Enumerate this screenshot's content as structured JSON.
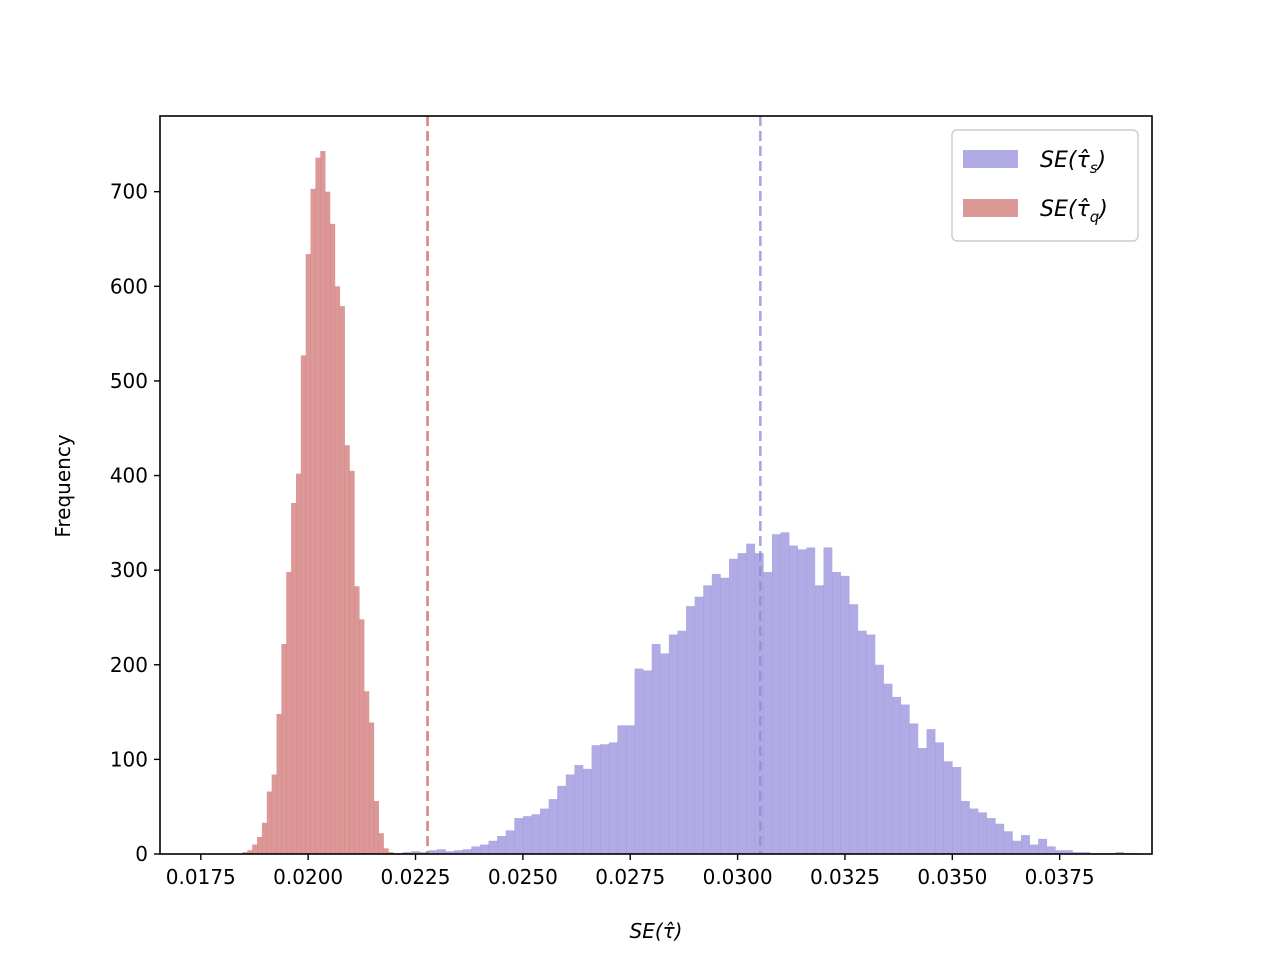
{
  "chart_data": {
    "type": "bar",
    "title": "",
    "xlabel": "SE(τ̂)",
    "ylabel": "Frequency",
    "xlim": [
      0.01655,
      0.03965
    ],
    "ylim": [
      0,
      780
    ],
    "xticks": [
      0.0175,
      0.02,
      0.0225,
      0.025,
      0.0275,
      0.03,
      0.0325,
      0.035,
      0.0375
    ],
    "xtick_labels": [
      "0.0175",
      "0.0200",
      "0.0225",
      "0.0250",
      "0.0275",
      "0.0300",
      "0.0325",
      "0.0350",
      "0.0375"
    ],
    "yticks": [
      0,
      100,
      200,
      300,
      400,
      500,
      600,
      700
    ],
    "ytick_labels": [
      "0",
      "100",
      "200",
      "300",
      "400",
      "500",
      "600",
      "700"
    ],
    "grid": false,
    "legend": {
      "placement": "top-right"
    },
    "series": [
      {
        "name": "SE(τ̂_s)",
        "legend_main": "SE(τ̂",
        "legend_sub": "s",
        "legend_close": ")",
        "color": "#8f88d8",
        "mean_line_color": "#8f88d8",
        "mean": 0.03053,
        "bin_start": 0.0212,
        "bin_width": 0.0002,
        "values": [
          1,
          1,
          0,
          1,
          1,
          2,
          3,
          2,
          4,
          5,
          3,
          4,
          5,
          8,
          10,
          14,
          19,
          25,
          38,
          40,
          42,
          48,
          58,
          72,
          84,
          94,
          90,
          115,
          116,
          118,
          136,
          136,
          196,
          194,
          222,
          212,
          232,
          236,
          262,
          272,
          284,
          296,
          292,
          312,
          318,
          328,
          318,
          298,
          338,
          340,
          326,
          322,
          324,
          284,
          324,
          298,
          294,
          264,
          236,
          232,
          200,
          180,
          166,
          158,
          138,
          112,
          132,
          118,
          98,
          92,
          56,
          48,
          44,
          38,
          32,
          24,
          14,
          20,
          10,
          16,
          8,
          4,
          4,
          2,
          2,
          1,
          1,
          1,
          2,
          1,
          1
        ]
      },
      {
        "name": "SE(τ̂_q)",
        "legend_main": "SE(τ̂",
        "legend_sub": "q",
        "legend_close": ")",
        "color": "#cd6b6b",
        "mean_line_color": "#cd5c5c",
        "mean": 0.02278,
        "bin_start": 0.01847,
        "bin_width": 0.0001133,
        "values": [
          2,
          4,
          10,
          18,
          33,
          66,
          84,
          148,
          222,
          298,
          371,
          402,
          527,
          634,
          703,
          736,
          743,
          700,
          666,
          600,
          579,
          432,
          405,
          283,
          248,
          172,
          139,
          56,
          22,
          6,
          2
        ]
      }
    ]
  }
}
